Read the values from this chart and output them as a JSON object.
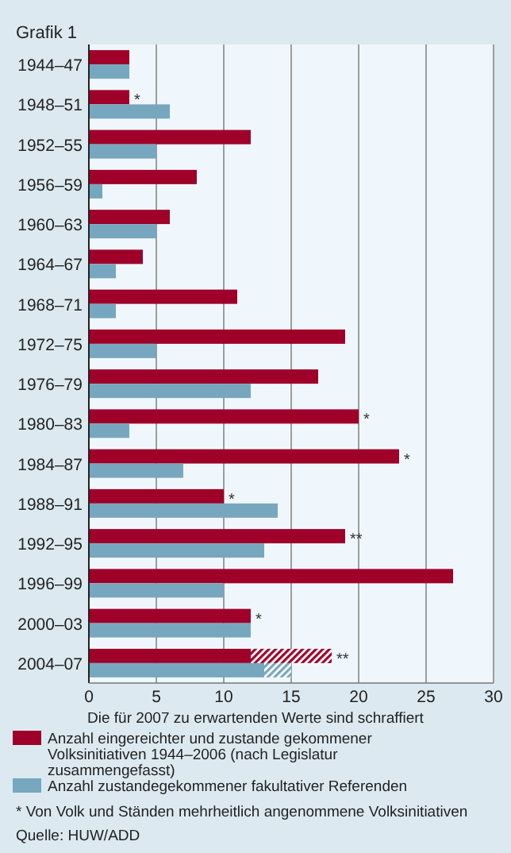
{
  "chart_data": {
    "type": "bar",
    "orientation": "horizontal",
    "title": "Grafik 1",
    "xlabel": "Die für 2007 zu erwartenden Werte sind schraffiert",
    "categories": [
      "1944–47",
      "1948–51",
      "1952–55",
      "1956–59",
      "1960–63",
      "1964–67",
      "1968–71",
      "1972–75",
      "1976–79",
      "1980–83",
      "1984–87",
      "1988–91",
      "1992–95",
      "1996–99",
      "2000–03",
      "2004–07"
    ],
    "series": [
      {
        "name": "Anzahl eingereichter und zustande gekommener Volksinitiativen 1944–2006 (nach Legislatur zusammengefasst)",
        "color": "#9e0029",
        "values": [
          3,
          3,
          12,
          8,
          6,
          4,
          11,
          19,
          17,
          20,
          23,
          10,
          19,
          27,
          12,
          12
        ],
        "value_labels": [
          null,
          "*",
          null,
          null,
          null,
          null,
          null,
          null,
          null,
          "*",
          "*",
          "*",
          "**",
          null,
          "*",
          null
        ]
      },
      {
        "name": "Anzahl zustandegekommener fakultativer Referenden",
        "color": "#77a7bf",
        "values": [
          3,
          6,
          5,
          1,
          5,
          2,
          2,
          5,
          12,
          3,
          7,
          14,
          13,
          10,
          12,
          13
        ]
      },
      {
        "color": "#9e0029",
        "values": [
          null,
          null,
          null,
          null,
          null,
          null,
          null,
          null,
          null,
          null,
          null,
          null,
          null,
          null,
          null,
          6
        ],
        "base": [
          null,
          null,
          null,
          null,
          null,
          null,
          null,
          null,
          null,
          null,
          null,
          null,
          null,
          null,
          null,
          12
        ],
        "value_labels": [
          null,
          null,
          null,
          null,
          null,
          null,
          null,
          null,
          null,
          null,
          null,
          null,
          null,
          null,
          null,
          "**"
        ]
      },
      {
        "color": "#77a7bf",
        "values": [
          null,
          null,
          null,
          null,
          null,
          null,
          null,
          null,
          null,
          null,
          null,
          null,
          null,
          null,
          null,
          2
        ],
        "base": [
          null,
          null,
          null,
          null,
          null,
          null,
          null,
          null,
          null,
          null,
          null,
          null,
          null,
          null,
          null,
          13
        ]
      }
    ],
    "xlim": [
      0,
      30
    ],
    "xticks": [
      0,
      5,
      10,
      15,
      20,
      25,
      30
    ],
    "grid": "x",
    "legend": "bottom",
    "annotations": [
      "* Von Volk und Ständen mehrheitlich angenommene Volksinitiativen",
      "Quelle: HUW/ADD"
    ]
  }
}
